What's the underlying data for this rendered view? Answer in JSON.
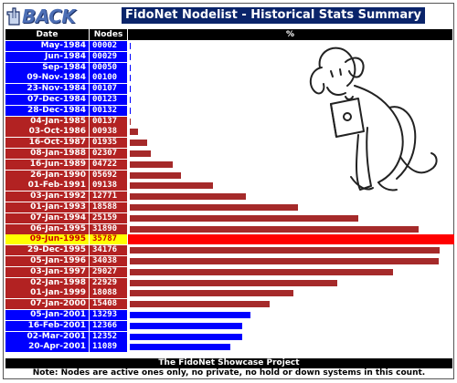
{
  "header": {
    "back_label": "BACK",
    "title": "FidoNet Nodelist - Historical Stats Summary"
  },
  "columns": {
    "date": "Date",
    "nodes": "Nodes",
    "pct": "%"
  },
  "colors": {
    "blue": "#0000ff",
    "red": "#b22222",
    "bar_red": "#a52a2a",
    "bar_blue": "#0000ff",
    "highlight_text": "#cc0000",
    "highlight_bg": "#ffff00",
    "highlight_strip": "#ff0000"
  },
  "max_nodes": 35787,
  "rows": [
    {
      "date": "May-1984",
      "nodes": "00002",
      "value": 2,
      "color": "blue"
    },
    {
      "date": "Jun-1984",
      "nodes": "00029",
      "value": 29,
      "color": "blue"
    },
    {
      "date": "Sep-1984",
      "nodes": "00050",
      "value": 50,
      "color": "blue"
    },
    {
      "date": "09-Nov-1984",
      "nodes": "00100",
      "value": 100,
      "color": "blue"
    },
    {
      "date": "23-Nov-1984",
      "nodes": "00107",
      "value": 107,
      "color": "blue"
    },
    {
      "date": "07-Dec-1984",
      "nodes": "00123",
      "value": 123,
      "color": "blue"
    },
    {
      "date": "28-Dec-1984",
      "nodes": "00132",
      "value": 132,
      "color": "blue"
    },
    {
      "date": "04-Jan-1985",
      "nodes": "00137",
      "value": 137,
      "color": "red"
    },
    {
      "date": "03-Oct-1986",
      "nodes": "00938",
      "value": 938,
      "color": "red"
    },
    {
      "date": "16-Oct-1987",
      "nodes": "01935",
      "value": 1935,
      "color": "red"
    },
    {
      "date": "08-Jan-1988",
      "nodes": "02307",
      "value": 2307,
      "color": "red"
    },
    {
      "date": "16-Jun-1989",
      "nodes": "04722",
      "value": 4722,
      "color": "red"
    },
    {
      "date": "26-Jan-1990",
      "nodes": "05692",
      "value": 5692,
      "color": "red"
    },
    {
      "date": "01-Feb-1991",
      "nodes": "09138",
      "value": 9138,
      "color": "red"
    },
    {
      "date": "03-Jan-1992",
      "nodes": "12771",
      "value": 12771,
      "color": "red"
    },
    {
      "date": "01-Jan-1993",
      "nodes": "18588",
      "value": 18588,
      "color": "red"
    },
    {
      "date": "07-Jan-1994",
      "nodes": "25159",
      "value": 25159,
      "color": "red"
    },
    {
      "date": "06-Jan-1995",
      "nodes": "31890",
      "value": 31890,
      "color": "red"
    },
    {
      "date": "09-Jun-1995",
      "nodes": "35787",
      "value": 35787,
      "color": "highlight"
    },
    {
      "date": "29-Dec-1995",
      "nodes": "34176",
      "value": 34176,
      "color": "red"
    },
    {
      "date": "05-Jan-1996",
      "nodes": "34038",
      "value": 34038,
      "color": "red"
    },
    {
      "date": "03-Jan-1997",
      "nodes": "29027",
      "value": 29027,
      "color": "red"
    },
    {
      "date": "02-Jan-1998",
      "nodes": "22929",
      "value": 22929,
      "color": "red"
    },
    {
      "date": "01-Jan-1999",
      "nodes": "18088",
      "value": 18088,
      "color": "red"
    },
    {
      "date": "07-Jan-2000",
      "nodes": "15408",
      "value": 15408,
      "color": "red"
    },
    {
      "date": "05-Jan-2001",
      "nodes": "13293",
      "value": 13293,
      "color": "blue"
    },
    {
      "date": "16-Feb-2001",
      "nodes": "12366",
      "value": 12366,
      "color": "blue"
    },
    {
      "date": "02-Mar-2001",
      "nodes": "12352",
      "value": 12352,
      "color": "blue"
    },
    {
      "date": "20-Apr-2001",
      "nodes": "11089",
      "value": 11089,
      "color": "blue"
    }
  ],
  "footer": {
    "project": "The FidoNet Showcase Project",
    "note": "Note: Nodes are active ones only, no private, no hold or down systems in this count."
  },
  "icons": {
    "back": "hand-pointer-icon",
    "mascot": "fido-dog-icon"
  }
}
